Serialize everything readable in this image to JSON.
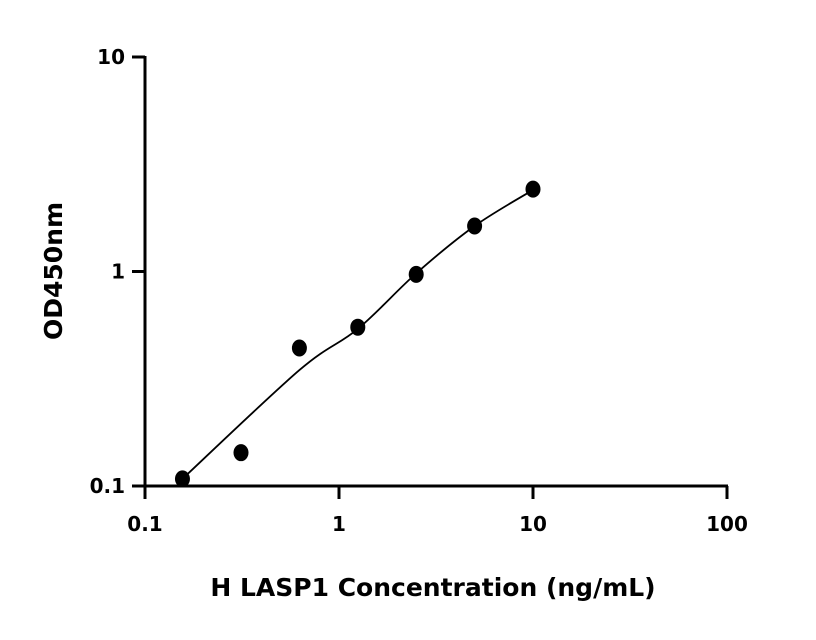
{
  "chart_data": {
    "type": "scatter",
    "title": "",
    "xlabel": "H LASP1 Concentration (ng/mL)",
    "ylabel": "OD450nm",
    "xscale": "log",
    "yscale": "log",
    "xlim": [
      0.1,
      100
    ],
    "ylim": [
      0.1,
      10
    ],
    "xticks": [
      0.1,
      1,
      10,
      100
    ],
    "xtick_labels": [
      "0.1",
      "1",
      "10",
      "100"
    ],
    "yticks": [
      0.1,
      1,
      10
    ],
    "ytick_labels": [
      "0.1",
      "1",
      "10"
    ],
    "grid": false,
    "legend": "none",
    "marker_color": "#000000",
    "points": {
      "x": [
        0.156,
        0.3125,
        0.625,
        1.25,
        2.5,
        5,
        10
      ],
      "y": [
        0.108,
        0.143,
        0.44,
        0.55,
        0.97,
        1.63,
        2.42
      ]
    },
    "fit_curve": {
      "x": [
        0.156,
        0.625,
        1.25,
        2.5,
        5,
        10
      ],
      "y": [
        0.108,
        0.347,
        0.54,
        0.98,
        1.63,
        2.4
      ]
    }
  }
}
